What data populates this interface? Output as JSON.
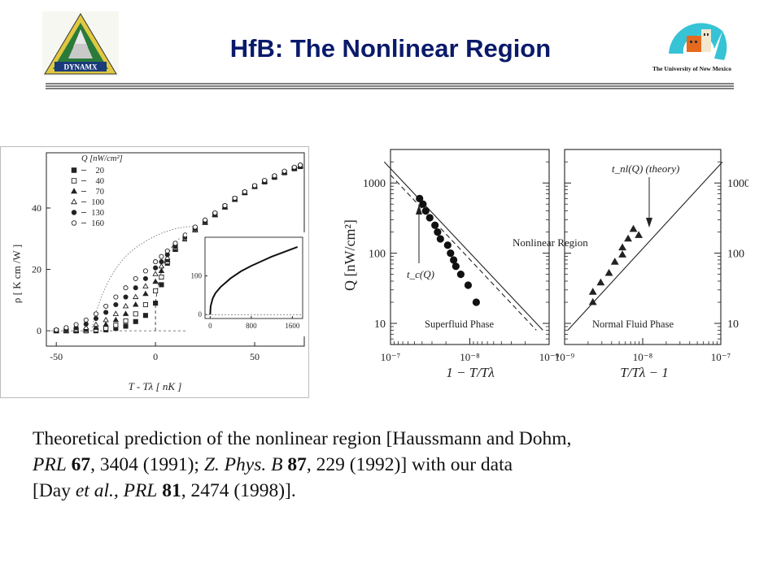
{
  "title": "HfB: The Nonlinear Region",
  "logos": {
    "left_text": "DYNAMX",
    "right_text": "The University of New Mexico",
    "colors": {
      "triangle_outer": "#e0c840",
      "triangle_inner": "#2a7a3a",
      "unm_cyan": "#36c3d6",
      "unm_orange": "#e56a1e"
    }
  },
  "caption": {
    "line1": "Theoretical prediction of the nonlinear region [Haussmann and Dohm,",
    "line2": [
      {
        "t": "PRL",
        "s": "i"
      },
      {
        "t": " ",
        "s": "n"
      },
      {
        "t": "67",
        "s": "b"
      },
      {
        "t": ", 3404 (1991); ",
        "s": "n"
      },
      {
        "t": "Z. Phys. B",
        "s": "i"
      },
      {
        "t": " ",
        "s": "n"
      },
      {
        "t": "87",
        "s": "b"
      },
      {
        "t": ", 229 (1992)] with our data",
        "s": "n"
      }
    ],
    "line3": [
      {
        "t": "[Day ",
        "s": "n"
      },
      {
        "t": "et al., PRL",
        "s": "i"
      },
      {
        "t": " ",
        "s": "n"
      },
      {
        "t": "81",
        "s": "b"
      },
      {
        "t": ", 2474 (1998)].",
        "s": "n"
      }
    ]
  },
  "chart_data": [
    {
      "type": "scatter",
      "xlabel": "T - Tλ [ nK ]",
      "ylabel": "ρ [ K cm /W ]",
      "xlim": [
        -55,
        75
      ],
      "ylim": [
        -5,
        58
      ],
      "xticks": [
        -50,
        0,
        50
      ],
      "yticks": [
        0,
        20,
        40
      ],
      "legend": {
        "title": "Q [nW/cm²]",
        "position": "top-left",
        "entries": [
          "20",
          "40",
          "70",
          "100",
          "130",
          "160"
        ],
        "markers": [
          "square-filled",
          "square-open",
          "triangle-filled",
          "triangle-open",
          "circle-filled",
          "circle-open"
        ]
      },
      "series": [
        {
          "name": "20",
          "marker": "square-filled",
          "x": [
            -50,
            -45,
            -40,
            -35,
            -30,
            -25,
            -20,
            -15,
            -10,
            -5,
            0,
            3,
            6,
            10,
            15,
            20,
            25,
            30,
            35,
            40,
            45,
            50,
            55,
            60,
            65,
            70,
            73
          ],
          "y": [
            0,
            0,
            0,
            0,
            0,
            0.3,
            0.8,
            1.5,
            3,
            5,
            9,
            15,
            22,
            27.5,
            30.5,
            33,
            35.5,
            38,
            40.5,
            43,
            45,
            47,
            48.5,
            50,
            51.5,
            52.8,
            53.5
          ]
        },
        {
          "name": "40",
          "marker": "square-open",
          "x": [
            -50,
            -45,
            -40,
            -35,
            -30,
            -25,
            -20,
            -15,
            -10,
            -5,
            0,
            3,
            6,
            10,
            15,
            20,
            25,
            30,
            35,
            40,
            45,
            50,
            55,
            60,
            65,
            70,
            73
          ],
          "y": [
            0,
            0,
            0,
            0,
            0.3,
            0.8,
            1.8,
            3.2,
            5.5,
            8.5,
            13,
            17.5,
            22.5,
            26.5,
            30,
            32.8,
            35.3,
            37.8,
            40.3,
            42.8,
            45,
            47,
            48.6,
            50.1,
            51.6,
            52.9,
            53.6
          ]
        },
        {
          "name": "70",
          "marker": "triangle-filled",
          "x": [
            -50,
            -45,
            -40,
            -35,
            -30,
            -25,
            -20,
            -15,
            -10,
            -5,
            0,
            3,
            6,
            10,
            15,
            20,
            25,
            30,
            35,
            40,
            45,
            50,
            55,
            60,
            65,
            70,
            73
          ],
          "y": [
            0,
            0,
            0,
            0.3,
            1,
            2,
            3.5,
            5.5,
            8.5,
            12,
            16,
            19.5,
            23,
            26.5,
            29.8,
            32.7,
            35.2,
            37.7,
            40.2,
            42.7,
            44.9,
            46.9,
            48.6,
            50.1,
            51.6,
            52.9,
            53.6
          ]
        },
        {
          "name": "100",
          "marker": "triangle-open",
          "x": [
            -50,
            -45,
            -40,
            -35,
            -30,
            -25,
            -20,
            -15,
            -10,
            -5,
            0,
            3,
            6,
            10,
            15,
            20,
            25,
            30,
            35,
            40,
            45,
            50,
            55,
            60,
            65,
            70,
            73
          ],
          "y": [
            0,
            0,
            0.3,
            1,
            2,
            3.5,
            5.5,
            8,
            11,
            14.5,
            18.5,
            21,
            23.8,
            27,
            30,
            32.8,
            35.3,
            37.8,
            40.3,
            42.8,
            45,
            47,
            48.7,
            50.2,
            51.7,
            53,
            53.7
          ]
        },
        {
          "name": "130",
          "marker": "circle-filled",
          "x": [
            -50,
            -45,
            -40,
            -35,
            -30,
            -25,
            -20,
            -15,
            -10,
            -5,
            0,
            3,
            6,
            10,
            15,
            20,
            25,
            30,
            35,
            40,
            45,
            50,
            55,
            60,
            65,
            70,
            73
          ],
          "y": [
            0,
            0.3,
            1,
            2.2,
            4,
            6,
            8.5,
            11,
            14,
            17,
            20.5,
            22.5,
            24.8,
            27.5,
            30.5,
            33.2,
            35.6,
            38,
            40.5,
            43,
            45.1,
            47.1,
            48.8,
            50.3,
            51.8,
            53.1,
            53.8
          ]
        },
        {
          "name": "160",
          "marker": "circle-open",
          "x": [
            -50,
            -45,
            -40,
            -35,
            -30,
            -25,
            -20,
            -15,
            -10,
            -5,
            0,
            3,
            6,
            10,
            15,
            20,
            25,
            30,
            35,
            40,
            45,
            50,
            55,
            60,
            65,
            70,
            73
          ],
          "y": [
            0.3,
            1,
            2,
            3.5,
            5.5,
            8,
            11,
            14,
            17,
            19.5,
            22.5,
            24.2,
            26,
            28.5,
            31.2,
            33.8,
            36.1,
            38.4,
            40.8,
            43.2,
            45.3,
            47.3,
            49,
            50.5,
            52,
            53.3,
            54
          ]
        }
      ],
      "inset": {
        "xlim": [
          -100,
          1800
        ],
        "ylim": [
          -10,
          200
        ],
        "xticks": [
          0,
          800,
          1600
        ],
        "yticks": [
          0,
          100
        ],
        "curve": {
          "x": [
            0,
            10,
            50,
            100,
            200,
            400,
            600,
            800,
            1000,
            1200,
            1400,
            1600,
            1700
          ],
          "y": [
            0,
            22,
            42,
            55,
            71,
            94,
            112,
            126,
            138,
            150,
            160,
            170,
            175
          ]
        }
      }
    },
    {
      "type": "scatter",
      "panel": "left",
      "xlabel": "1 − T/Tλ",
      "ylabel": "Q [nW/cm²]",
      "xscale": "log-reversed",
      "yscale": "log",
      "xlim": [
        1e-07,
        1e-09
      ],
      "ylim": [
        5,
        3000
      ],
      "xticks": [
        "10⁻⁷",
        "10⁻⁸",
        "10⁻⁹"
      ],
      "yticks": [
        "10",
        "100",
        "1000"
      ],
      "annotations": [
        "Nonlinear Region",
        "Superfluid Phase",
        "t_c(Q)"
      ],
      "series": [
        {
          "name": "",
          "marker": "circle-filled",
          "x": [
            4.3e-08,
            3.9e-08,
            3.6e-08,
            3.2e-08,
            2.75e-08,
            2.55e-08,
            2.35e-08,
            1.9e-08,
            1.75e-08,
            1.6e-08,
            1.5e-08,
            1.3e-08,
            1.05e-08,
            8.3e-09
          ],
          "y": [
            600,
            500,
            400,
            320,
            250,
            200,
            160,
            130,
            100,
            80,
            65,
            50,
            35,
            20
          ]
        },
        {
          "name": "",
          "line": "solid",
          "x": [
            1.2e-07,
            1.2e-09
          ],
          "y": [
            2000,
            8
          ]
        },
        {
          "name": "",
          "line": "dashed",
          "x": [
            1e-07,
            1.45e-09
          ],
          "y": [
            1300,
            8
          ]
        }
      ]
    },
    {
      "type": "scatter",
      "panel": "right",
      "xlabel": "T/Tλ − 1",
      "ylabel": "",
      "xscale": "log",
      "yscale": "log",
      "xlim": [
        1e-09,
        1e-07
      ],
      "ylim": [
        5,
        3000
      ],
      "xticks": [
        "10⁻⁹",
        "10⁻⁸",
        "10⁻⁷"
      ],
      "yticks": [
        "10",
        "100",
        "1000"
      ],
      "annotations": [
        "Normal Fluid Phase",
        "t_nl(Q) (theory)"
      ],
      "series": [
        {
          "name": "",
          "marker": "triangle-filled",
          "x": [
            2.3e-09,
            2.3e-09,
            2.9e-09,
            3.7e-09,
            4.4e-09,
            5.5e-09,
            5.5e-09,
            6.5e-09,
            7.6e-09,
            8.9e-09
          ],
          "y": [
            20,
            28,
            38,
            52,
            75,
            95,
            120,
            160,
            220,
            180
          ]
        },
        {
          "name": "",
          "line": "solid",
          "x": [
            1.1e-09,
            1.05e-07
          ],
          "y": [
            8,
            2000
          ]
        }
      ]
    }
  ]
}
